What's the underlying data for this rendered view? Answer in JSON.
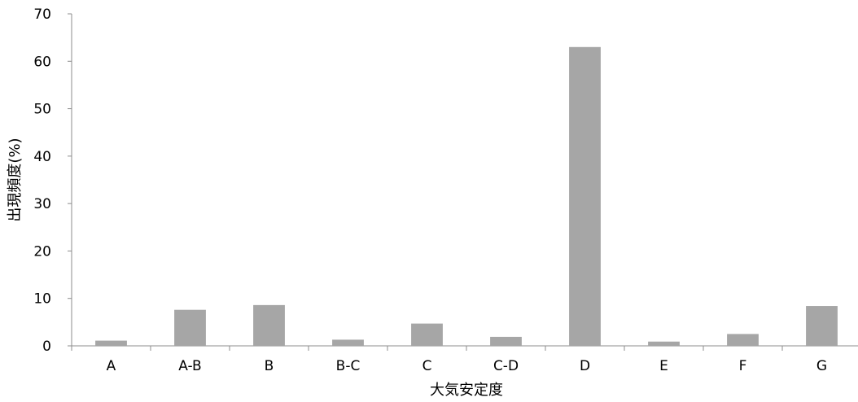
{
  "chart_data": {
    "type": "bar",
    "categories": [
      "A",
      "A-B",
      "B",
      "B-C",
      "C",
      "C-D",
      "D",
      "E",
      "F",
      "G"
    ],
    "values": [
      1.1,
      7.6,
      8.6,
      1.3,
      4.7,
      1.9,
      63.0,
      0.9,
      2.5,
      8.4
    ],
    "xlabel": "大気安定度",
    "ylabel": "出現頻度(%)",
    "ylim": [
      0,
      70
    ],
    "yticks": [
      "0",
      "10",
      "20",
      "30",
      "40",
      "50",
      "60",
      "70"
    ],
    "bar_color": "#a6a6a6",
    "grid": false,
    "legend": "none"
  }
}
